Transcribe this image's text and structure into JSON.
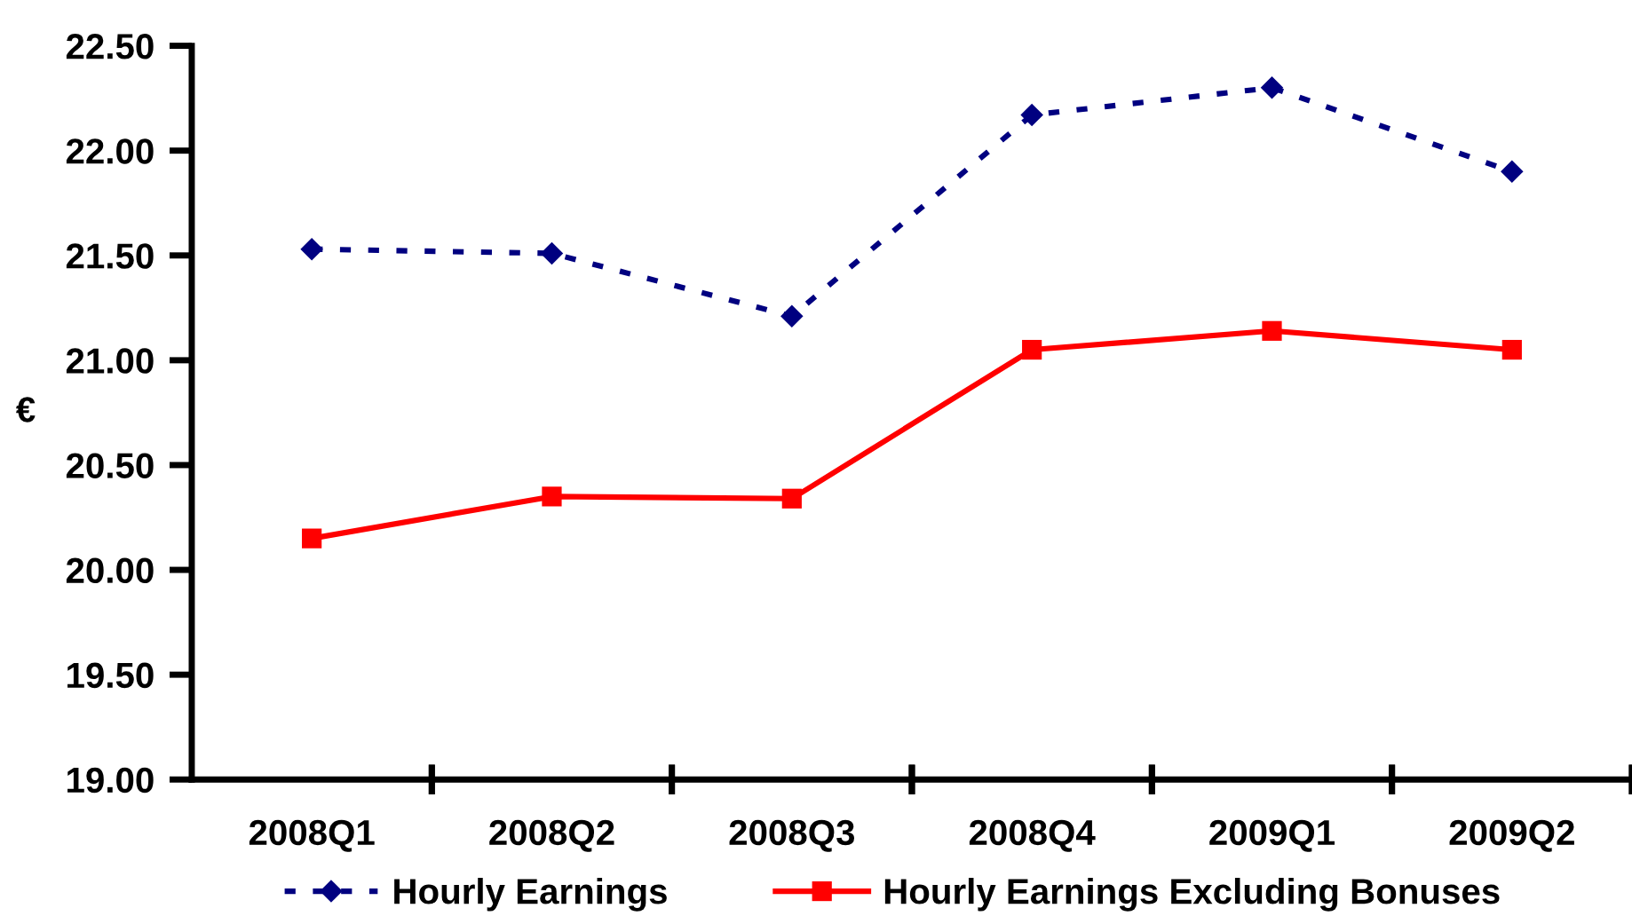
{
  "chart_data": {
    "type": "line",
    "ylabel": "€",
    "categories": [
      "2008Q1",
      "2008Q2",
      "2008Q3",
      "2008Q4",
      "2009Q1",
      "2009Q2"
    ],
    "series": [
      {
        "name": "Hourly Earnings",
        "color": "#000080",
        "marker": "diamond",
        "line_style": "dashed",
        "values": [
          21.53,
          21.51,
          21.21,
          22.17,
          22.3,
          21.9
        ]
      },
      {
        "name": "Hourly Earnings Excluding Bonuses",
        "color": "#ff0000",
        "marker": "square",
        "line_style": "solid",
        "values": [
          20.15,
          20.35,
          20.34,
          21.05,
          21.14,
          21.05
        ]
      }
    ],
    "ylim": [
      19.0,
      22.5
    ],
    "yticks": [
      {
        "value": 19.0,
        "label": "19.00"
      },
      {
        "value": 19.5,
        "label": "19.50"
      },
      {
        "value": 20.0,
        "label": "20.00"
      },
      {
        "value": 20.5,
        "label": "20.50"
      },
      {
        "value": 21.0,
        "label": "21.00"
      },
      {
        "value": 21.5,
        "label": "21.50"
      },
      {
        "value": 22.0,
        "label": "22.00"
      },
      {
        "value": 22.5,
        "label": "22.50"
      }
    ],
    "grid": false,
    "legend": "bottom"
  }
}
